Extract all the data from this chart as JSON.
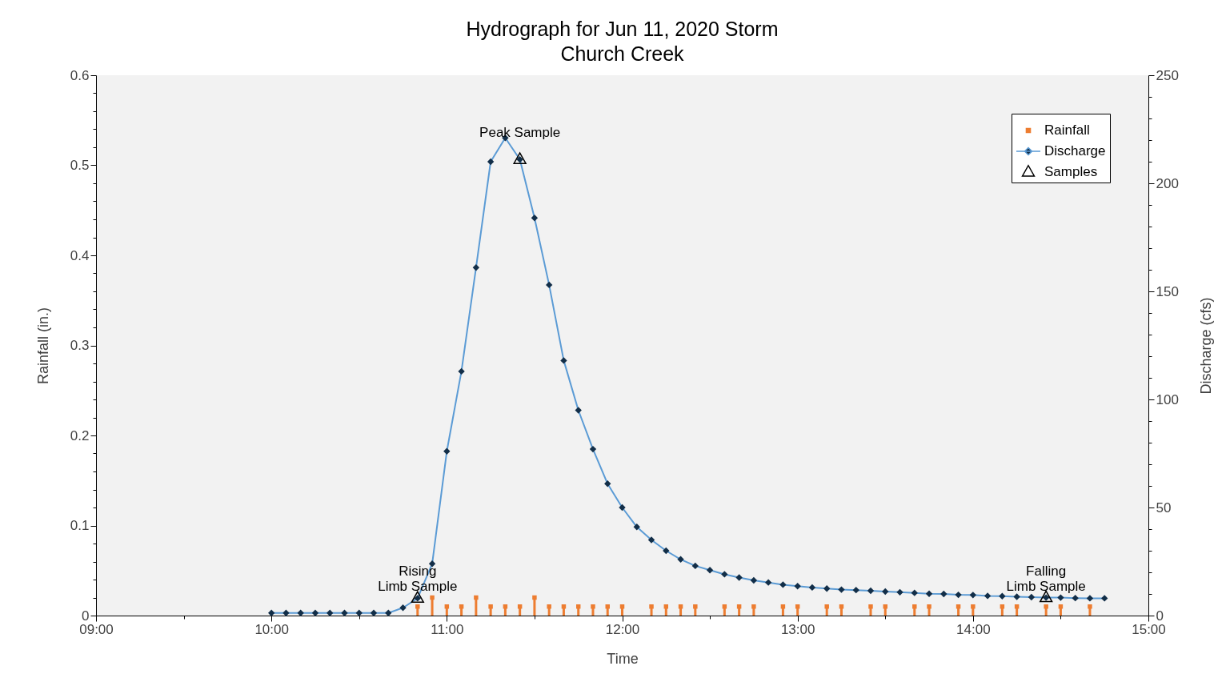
{
  "chart_data": {
    "type": "line",
    "title": "Hydrograph for Jun 11, 2020 Storm",
    "subtitle": "Church Creek",
    "xlabel": "Time",
    "ylabel": "Rainfall (in.)",
    "y2label": "Discharge (cfs)",
    "xlim": [
      "2020-06-11T09:00",
      "2020-06-11T15:00"
    ],
    "xticks": [
      {
        "value": "2020-06-11T09:00",
        "label": "09:00"
      },
      {
        "value": "2020-06-11T09:30",
        "label": null
      },
      {
        "value": "2020-06-11T10:00",
        "label": "10:00"
      },
      {
        "value": "2020-06-11T10:30",
        "label": null
      },
      {
        "value": "2020-06-11T11:00",
        "label": "11:00"
      },
      {
        "value": "2020-06-11T11:30",
        "label": null
      },
      {
        "value": "2020-06-11T12:00",
        "label": "12:00"
      },
      {
        "value": "2020-06-11T12:30",
        "label": null
      },
      {
        "value": "2020-06-11T13:00",
        "label": "13:00"
      },
      {
        "value": "2020-06-11T13:30",
        "label": null
      },
      {
        "value": "2020-06-11T14:00",
        "label": "14:00"
      },
      {
        "value": "2020-06-11T14:30",
        "label": null
      },
      {
        "value": "2020-06-11T15:00",
        "label": "15:00"
      }
    ],
    "ylim": [
      0,
      0.6
    ],
    "yticks": [
      0,
      {
        "value": 0.02,
        "label": null
      },
      {
        "value": 0.04,
        "label": null
      },
      {
        "value": 0.06,
        "label": null
      },
      {
        "value": 0.08,
        "label": null
      },
      0.1,
      {
        "value": 0.12,
        "label": null
      },
      {
        "value": 0.14,
        "label": null
      },
      {
        "value": 0.16,
        "label": null
      },
      {
        "value": 0.18,
        "label": null
      },
      0.2,
      {
        "value": 0.22,
        "label": null
      },
      {
        "value": 0.24,
        "label": null
      },
      {
        "value": 0.26,
        "label": null
      },
      {
        "value": 0.28,
        "label": null
      },
      0.3,
      {
        "value": 0.32,
        "label": null
      },
      {
        "value": 0.34,
        "label": null
      },
      {
        "value": 0.36,
        "label": null
      },
      {
        "value": 0.38,
        "label": null
      },
      0.4,
      {
        "value": 0.42,
        "label": null
      },
      {
        "value": 0.44,
        "label": null
      },
      {
        "value": 0.46,
        "label": null
      },
      {
        "value": 0.48,
        "label": null
      },
      0.5,
      {
        "value": 0.52,
        "label": null
      },
      {
        "value": 0.54,
        "label": null
      },
      {
        "value": 0.56,
        "label": null
      },
      {
        "value": 0.58,
        "label": null
      },
      0.6
    ],
    "y2lim": [
      0,
      250
    ],
    "y2ticks": [
      0,
      {
        "value": 10,
        "label": null
      },
      {
        "value": 20,
        "label": null
      },
      {
        "value": 30,
        "label": null
      },
      {
        "value": 40,
        "label": null
      },
      50,
      {
        "value": 60,
        "label": null
      },
      {
        "value": 70,
        "label": null
      },
      {
        "value": 80,
        "label": null
      },
      {
        "value": 90,
        "label": null
      },
      100,
      {
        "value": 110,
        "label": null
      },
      {
        "value": 120,
        "label": null
      },
      {
        "value": 130,
        "label": null
      },
      {
        "value": 140,
        "label": null
      },
      150,
      {
        "value": 160,
        "label": null
      },
      {
        "value": 170,
        "label": null
      },
      {
        "value": 180,
        "label": null
      },
      {
        "value": 190,
        "label": null
      },
      200,
      {
        "value": 210,
        "label": null
      },
      {
        "value": 220,
        "label": null
      },
      {
        "value": 230,
        "label": null
      },
      {
        "value": 240,
        "label": null
      },
      250
    ],
    "grid": false,
    "legend": "top right",
    "series": [
      {
        "name": "Rainfall",
        "type": "lollipop",
        "marker": "square",
        "color": "#ed7d31",
        "x": [
          "2020-06-11T10:50",
          "2020-06-11T10:55",
          "2020-06-11T11:00",
          "2020-06-11T11:05",
          "2020-06-11T11:10",
          "2020-06-11T11:15",
          "2020-06-11T11:20",
          "2020-06-11T11:25",
          "2020-06-11T11:30",
          "2020-06-11T11:35",
          "2020-06-11T11:40",
          "2020-06-11T11:45",
          "2020-06-11T11:50",
          "2020-06-11T11:55",
          "2020-06-11T12:00",
          "2020-06-11T12:10",
          "2020-06-11T12:15",
          "2020-06-11T12:20",
          "2020-06-11T12:25",
          "2020-06-11T12:35",
          "2020-06-11T12:40",
          "2020-06-11T12:45",
          "2020-06-11T12:55",
          "2020-06-11T13:00",
          "2020-06-11T13:10",
          "2020-06-11T13:15",
          "2020-06-11T13:25",
          "2020-06-11T13:30",
          "2020-06-11T13:40",
          "2020-06-11T13:45",
          "2020-06-11T13:55",
          "2020-06-11T14:00",
          "2020-06-11T14:10",
          "2020-06-11T14:15",
          "2020-06-11T14:25",
          "2020-06-11T14:30",
          "2020-06-11T14:40"
        ],
        "values": [
          0.01,
          0.02,
          0.01,
          0.01,
          0.02,
          0.01,
          0.01,
          0.01,
          0.02,
          0.01,
          0.01,
          0.01,
          0.01,
          0.01,
          0.01,
          0.01,
          0.01,
          0.01,
          0.01,
          0.01,
          0.01,
          0.01,
          0.01,
          0.01,
          0.01,
          0.01,
          0.01,
          0.01,
          0.01,
          0.01,
          0.01,
          0.01,
          0.01,
          0.01,
          0.01,
          0.01,
          0.01
        ]
      },
      {
        "name": "Discharge",
        "axis": "y2",
        "marker": "diamond",
        "line_style": "solid",
        "color": "#5b9bd5",
        "x": [
          "2020-06-11T10:00",
          "2020-06-11T10:05",
          "2020-06-11T10:10",
          "2020-06-11T10:15",
          "2020-06-11T10:20",
          "2020-06-11T10:25",
          "2020-06-11T10:30",
          "2020-06-11T10:35",
          "2020-06-11T10:40",
          "2020-06-11T10:45",
          "2020-06-11T10:50",
          "2020-06-11T10:55",
          "2020-06-11T11:00",
          "2020-06-11T11:05",
          "2020-06-11T11:10",
          "2020-06-11T11:15",
          "2020-06-11T11:20",
          "2020-06-11T11:25",
          "2020-06-11T11:30",
          "2020-06-11T11:35",
          "2020-06-11T11:40",
          "2020-06-11T11:45",
          "2020-06-11T11:50",
          "2020-06-11T11:55",
          "2020-06-11T12:00",
          "2020-06-11T12:05",
          "2020-06-11T12:10",
          "2020-06-11T12:15",
          "2020-06-11T12:20",
          "2020-06-11T12:25",
          "2020-06-11T12:30",
          "2020-06-11T12:35",
          "2020-06-11T12:40",
          "2020-06-11T12:45",
          "2020-06-11T12:50",
          "2020-06-11T12:55",
          "2020-06-11T13:00",
          "2020-06-11T13:05",
          "2020-06-11T13:10",
          "2020-06-11T13:15",
          "2020-06-11T13:20",
          "2020-06-11T13:25",
          "2020-06-11T13:30",
          "2020-06-11T13:35",
          "2020-06-11T13:40",
          "2020-06-11T13:45",
          "2020-06-11T13:50",
          "2020-06-11T13:55",
          "2020-06-11T14:00",
          "2020-06-11T14:05",
          "2020-06-11T14:10",
          "2020-06-11T14:15",
          "2020-06-11T14:20",
          "2020-06-11T14:25",
          "2020-06-11T14:30",
          "2020-06-11T14:35",
          "2020-06-11T14:40",
          "2020-06-11T14:45"
        ],
        "values": [
          1.2,
          1.2,
          1.2,
          1.2,
          1.2,
          1.2,
          1.2,
          1.2,
          1.2,
          3.6,
          8,
          24,
          76,
          113,
          161,
          210,
          221,
          211,
          184,
          153,
          118,
          95,
          77,
          61,
          50,
          41,
          35,
          30,
          26,
          23,
          21,
          19.1,
          17.6,
          16.3,
          15.3,
          14.3,
          13.6,
          13,
          12.5,
          12,
          11.8,
          11.5,
          11.1,
          10.8,
          10.5,
          10.1,
          10,
          9.6,
          9.5,
          9.1,
          9,
          8.7,
          8.5,
          8.3,
          8.3,
          8.1,
          8,
          8
        ]
      },
      {
        "name": "Samples",
        "type": "scatter",
        "axis": "y2",
        "marker": "triangle",
        "color": "#000000",
        "x": [
          "2020-06-11T10:50",
          "2020-06-11T11:25",
          "2020-06-11T14:25"
        ],
        "values": [
          8,
          211,
          8.3
        ]
      }
    ],
    "annotations": [
      "Rising\nLimb Sample",
      "Peak Sample",
      "Falling\nLimb Sample"
    ]
  }
}
